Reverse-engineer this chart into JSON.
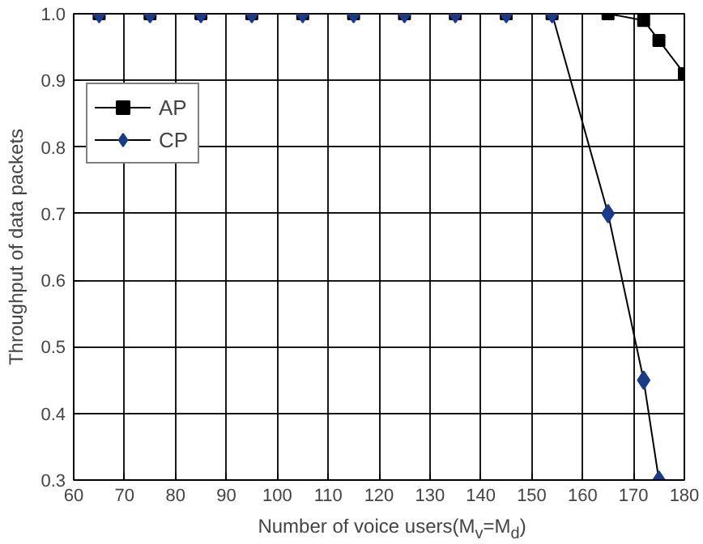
{
  "chart_data": {
    "type": "line",
    "xlabel": "Number of voice users(M$_{v}$=M$_{d}$)",
    "ylabel": "Throughput of data packets",
    "series": [
      {
        "name": "AP",
        "color": "#000000",
        "marker": "square",
        "x": [
          65,
          75,
          85,
          95,
          105,
          115,
          125,
          135,
          145,
          154,
          165,
          172,
          175,
          180
        ],
        "values": [
          1.0,
          1.0,
          1.0,
          1.0,
          1.0,
          1.0,
          1.0,
          1.0,
          1.0,
          1.0,
          1.0,
          0.99,
          0.96,
          0.91
        ]
      },
      {
        "name": "CP",
        "color": "#1a3a8a",
        "marker": "diamond",
        "x": [
          65,
          75,
          85,
          95,
          105,
          115,
          125,
          135,
          145,
          154,
          165,
          172,
          175
        ],
        "values": [
          1.0,
          1.0,
          1.0,
          1.0,
          1.0,
          1.0,
          1.0,
          1.0,
          1.0,
          1.0,
          0.7,
          0.45,
          0.3
        ]
      }
    ],
    "xlim": [
      60,
      180
    ],
    "xticks": [
      60,
      70,
      80,
      90,
      100,
      110,
      120,
      130,
      140,
      150,
      160,
      170,
      180
    ],
    "ylim": [
      0.3,
      1.0
    ],
    "yticks": [
      {
        "value": 0.3,
        "label": "0.3"
      },
      {
        "value": 0.4,
        "label": "0.4"
      },
      {
        "value": 0.5,
        "label": "0.5"
      },
      {
        "value": 0.6,
        "label": "0.6"
      },
      {
        "value": 0.7,
        "label": "0.7"
      },
      {
        "value": 0.8,
        "label": "0.8"
      },
      {
        "value": 0.9,
        "label": "0.9"
      },
      {
        "value": 1.0,
        "label": "1.0"
      }
    ],
    "grid": true,
    "legend": "top left",
    "line_style": "solid"
  }
}
